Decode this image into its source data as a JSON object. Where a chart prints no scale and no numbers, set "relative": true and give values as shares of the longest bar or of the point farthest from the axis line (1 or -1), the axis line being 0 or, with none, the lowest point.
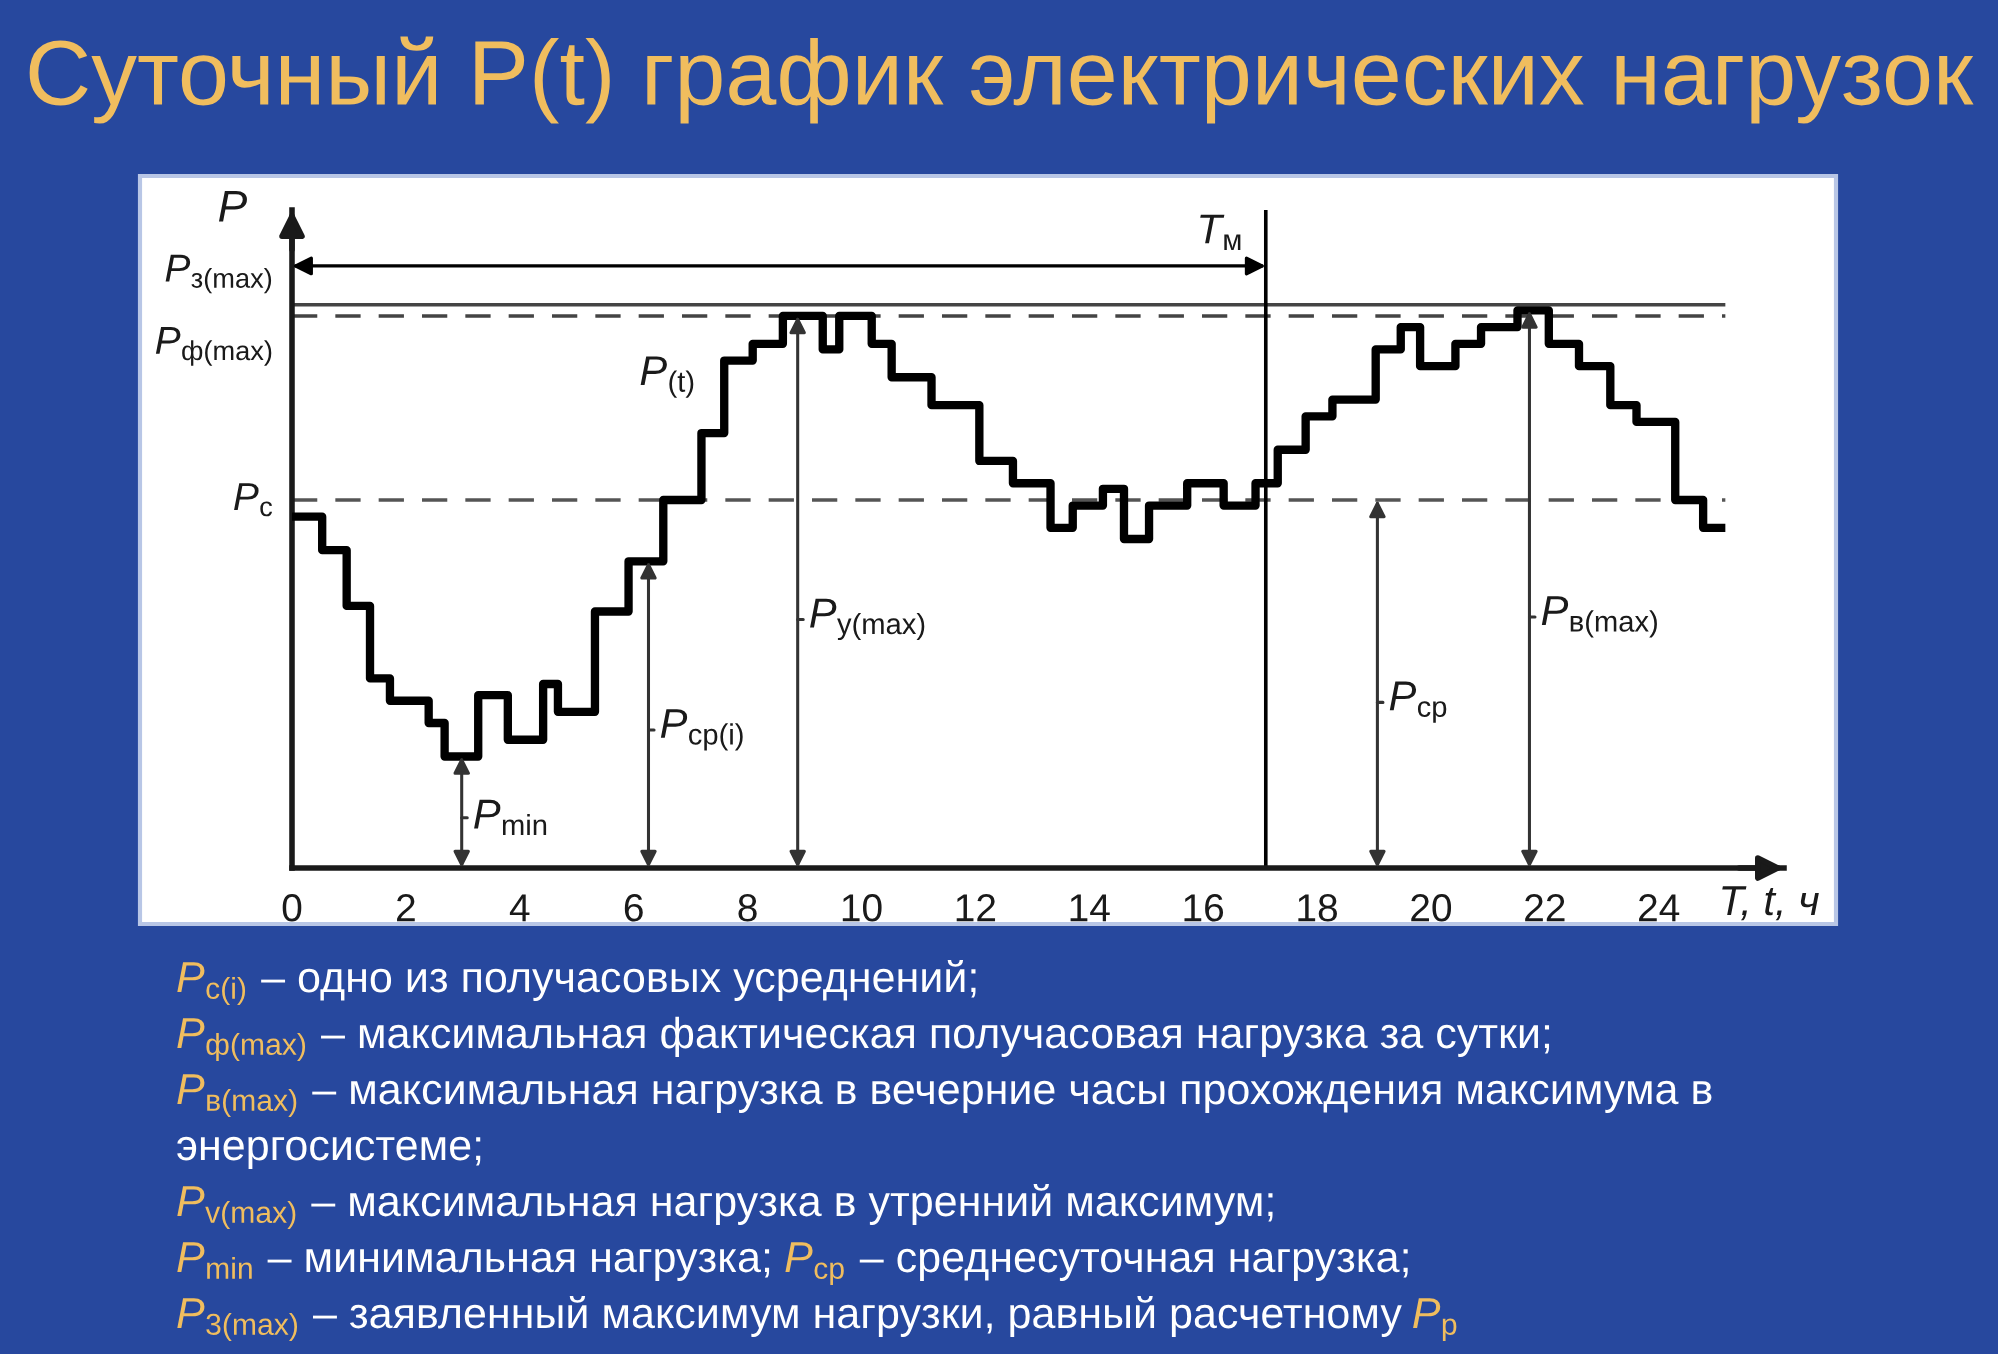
{
  "chart_data": {
    "type": "step",
    "title": "Суточный P(t) график электрических нагрузок",
    "xlabel": "T, t, ч",
    "ylabel": "P",
    "relative": true,
    "xlim": [
      0,
      26.2
    ],
    "xticks": [
      0,
      2,
      4,
      6,
      8,
      10,
      12,
      14,
      16,
      18,
      20,
      22,
      24
    ],
    "tick_labels": "x",
    "series": [
      {
        "name": "P$_{(t)}$",
        "color": "#000000",
        "x": [
          0,
          0.53,
          0.96,
          1.37,
          1.72,
          2.4,
          2.68,
          3.27,
          3.79,
          4.41,
          4.67,
          5.32,
          5.91,
          6.52,
          7.19,
          7.59,
          8.09,
          8.62,
          9.32,
          9.61,
          10.18,
          10.53,
          11.23,
          12.07,
          12.66,
          13.32,
          13.71,
          14.24,
          14.61,
          15.05,
          15.72,
          16.36,
          16.92,
          17.31,
          17.8,
          18.27,
          19.03,
          19.47,
          19.81,
          20.43,
          20.88,
          21.52,
          22.07,
          22.6,
          23.15,
          23.61,
          24.29,
          24.78,
          25.17
        ],
        "values": [
          0.63,
          0.57,
          0.47,
          0.34,
          0.3,
          0.26,
          0.2,
          0.31,
          0.23,
          0.33,
          0.28,
          0.46,
          0.55,
          0.66,
          0.78,
          0.91,
          0.94,
          0.99,
          0.93,
          0.99,
          0.94,
          0.88,
          0.83,
          0.73,
          0.69,
          0.61,
          0.65,
          0.68,
          0.59,
          0.65,
          0.69,
          0.65,
          0.69,
          0.75,
          0.81,
          0.84,
          0.93,
          0.97,
          0.9,
          0.94,
          0.97,
          1.0,
          0.94,
          0.9,
          0.83,
          0.8,
          0.66,
          0.61,
          0.61
        ]
      }
    ],
    "ref_lines": [
      {
        "axis": "y",
        "value": 1.01,
        "label": "P$_{з(max)}$",
        "color": "#444444",
        "line_style": "solid"
      },
      {
        "axis": "y",
        "value": 0.99,
        "label": "P$_{ф(max)}$",
        "color": "#444444",
        "line_style": "dashed"
      },
      {
        "axis": "y",
        "value": 0.66,
        "label": "P$_{с}$",
        "color": "#555555",
        "line_style": "dashed"
      },
      {
        "axis": "x",
        "value": 17.1,
        "label": "T$_{м}$",
        "color": "#000000",
        "line_style": "solid"
      }
    ],
    "annotations": [
      {
        "text": "P$_{min}$",
        "x": 2.98,
        "y": 0.2
      },
      {
        "text": "P$_{ср(i)}$",
        "x": 6.26,
        "y": 0.55
      },
      {
        "text": "P$_{у(max)}$",
        "x": 8.88,
        "y": 0.99
      },
      {
        "text": "P$_{ср}$",
        "x": 19.06,
        "y": 0.66
      },
      {
        "text": "P$_{в(max)}$",
        "x": 21.73,
        "y": 1.0
      },
      "P$_{с(i)}$ – одно из получасовых усреднений;",
      "P$_{ф(max)}$ – максимальная фактическая получасовая нагрузка за сутки;",
      "P$_{в(max)}$ – максимальная нагрузка в вечерние часы прохождения максимума в энергосистеме;",
      "P$_{v(max)}$ – максимальная нагрузка в утренний максимум;",
      "P$_{min}$ – минимальная нагрузка; P$_{ср}$ – среднесуточная нагрузка;",
      "P$_{3(max)}$ – заявленный максимум нагрузки, равный расчетному P$_{р}$"
    ]
  }
}
